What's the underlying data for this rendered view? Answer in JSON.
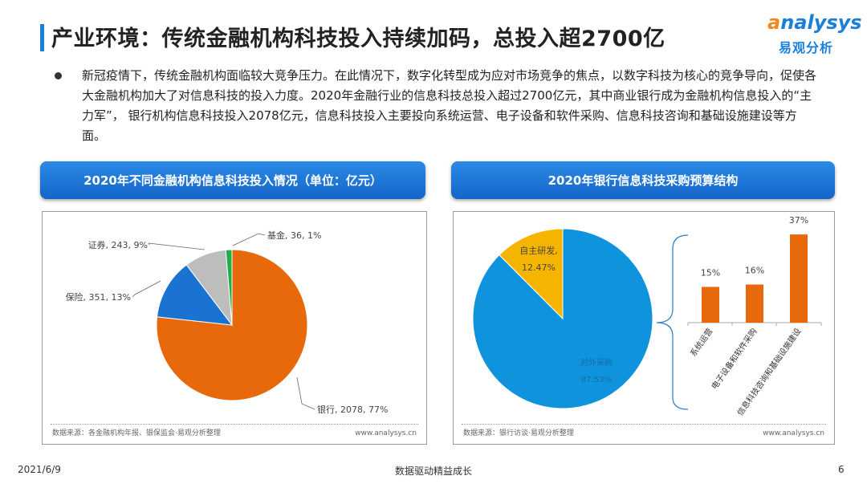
{
  "header": {
    "title": "产业环境：传统金融机构科技投入持续加码，总投入超2700亿",
    "logo_en": "analysys",
    "logo_cn": "易观分析"
  },
  "bullet": "新冠疫情下，传统金融机构面临较大竞争压力。在此情况下，数字化转型成为应对市场竞争的焦点，以数字科技为核心的竞争导向，促使各大金融机构加大了对信息科技的投入力度。2020年金融行业的信息科技总投入超过2700亿元，其中商业银行成为金融机构信息投入的“主力军”， 银行机构信息科技投入2078亿元，信息科技投入主要投向系统运营、电子设备和软件采购、信息科技咨询和基础设施建设等方面。",
  "left_panel": {
    "header": "2020年不同金融机构信息科技投入情况（单位：亿元）",
    "source": "数据来源：各金融机构年报、银保监会·易观分析整理",
    "site": "www.analysys.cn"
  },
  "right_panel": {
    "header": "2020年银行信息科技采购预算结构",
    "source": "数据来源：银行访谈·易观分析整理",
    "site": "www.analysys.cn"
  },
  "footer": {
    "date": "2021/6/9",
    "center": "数据驱动精益成长",
    "page": "6"
  },
  "chart_data": [
    {
      "type": "pie",
      "unit": "亿元",
      "start": "top",
      "direction": "clockwise",
      "slices": [
        {
          "label": "银行",
          "value": 2078,
          "pct": "77%",
          "color": "#e8690b",
          "text": "银行, 2078, 77%"
        },
        {
          "label": "保险",
          "value": 351,
          "pct": "13%",
          "color": "#1a73d0",
          "text": "保险, 351, 13%"
        },
        {
          "label": "证券",
          "value": 243,
          "pct": "9%",
          "color": "#bdbdbd",
          "text": "证券, 243, 9%"
        },
        {
          "label": "基金",
          "value": 36,
          "pct": "1%",
          "color": "#1fae4b",
          "text": "基金, 36, 1%"
        }
      ]
    },
    {
      "type": "pie",
      "start": "top",
      "direction": "clockwise",
      "slices": [
        {
          "label": "对外采购",
          "value": 87.53,
          "pct": "87.53%",
          "color": "#0e93dc"
        },
        {
          "label": "自主研发",
          "value": 12.47,
          "pct": "12.47%",
          "color": "#f5b400"
        }
      ]
    },
    {
      "type": "bar",
      "color": "#e8690b",
      "categories": [
        "系统运营",
        "电子设备和软件采购",
        "信息科技咨询和基础设施建设"
      ],
      "values": [
        15,
        16,
        37
      ],
      "labels": [
        "15%",
        "16%",
        "37%"
      ]
    }
  ]
}
